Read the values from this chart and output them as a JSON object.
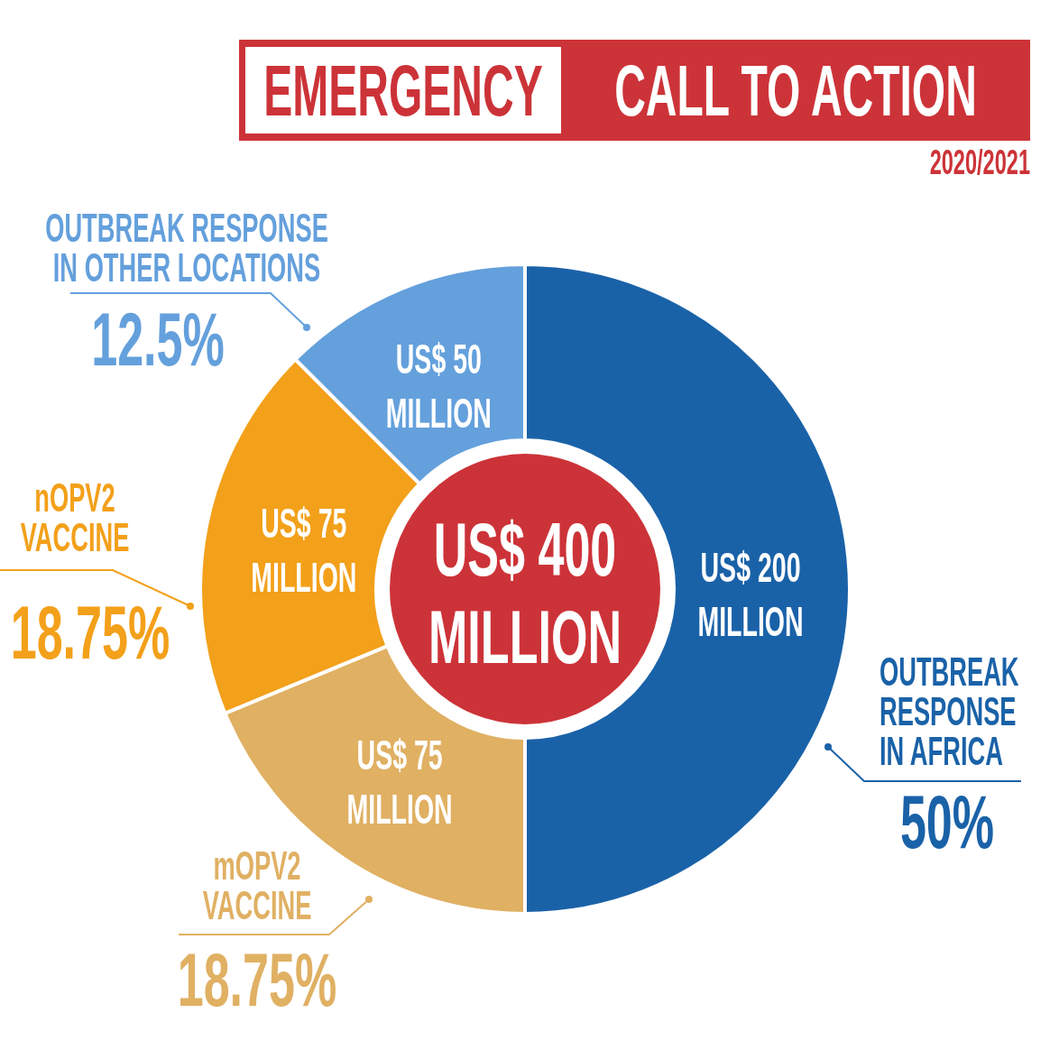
{
  "chart_data": {
    "type": "donut",
    "title": "EMERGENCY CALL TO ACTION",
    "subtitle": "2020/2021",
    "categories": [
      "OUTBREAK RESPONSE IN AFRICA",
      "mOPV2 VACCINE",
      "nOPV2 VACCINE",
      "OUTBREAK RESPONSE IN OTHER LOCATIONS"
    ],
    "values": [
      200,
      75,
      75,
      50
    ],
    "colors": [
      "#1a62a8",
      "#e0b063",
      "#f3a01a",
      "#64a0dc"
    ],
    "value_labels": [
      "US$ 200 MILLION",
      "US$ 75 MILLION",
      "US$ 75 MILLION",
      "US$ 50 MILLION"
    ],
    "annotations": [
      "US$ 400 MILLION",
      {
        "text": "50%",
        "x": "OUTBREAK RESPONSE IN AFRICA"
      },
      {
        "text": "18.75%",
        "x": "mOPV2 VACCINE"
      },
      {
        "text": "18.75%",
        "x": "nOPV2 VACCINE"
      },
      {
        "text": "12.5%",
        "x": "OUTBREAK RESPONSE IN OTHER LOCATIONS"
      }
    ]
  }
}
